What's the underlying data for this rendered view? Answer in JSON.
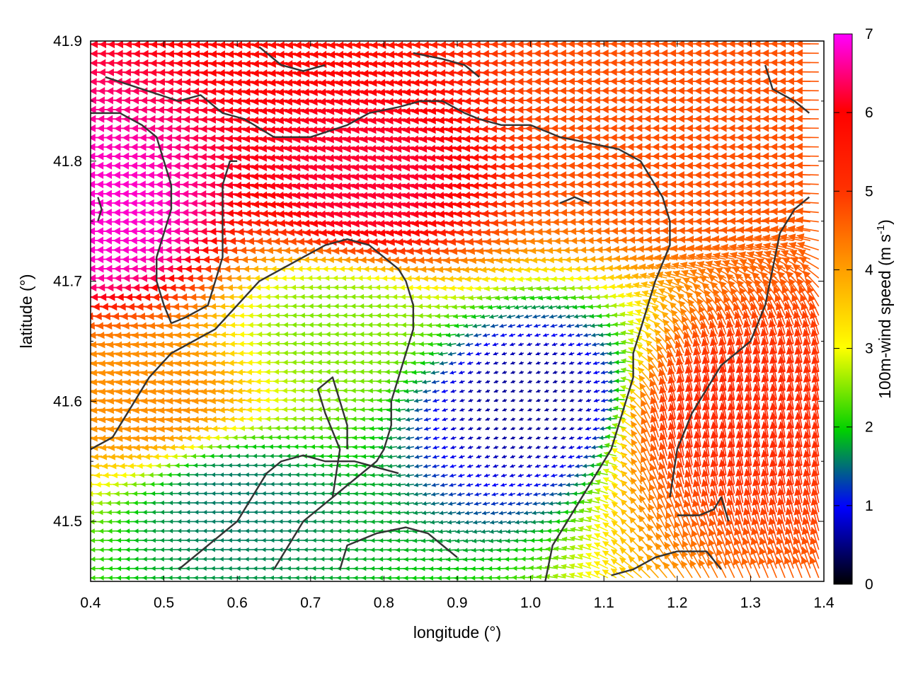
{
  "chart_data": {
    "type": "quiver",
    "xlabel": "longitude (°)",
    "ylabel": "latitude (°)",
    "xlim": [
      0.4,
      1.4
    ],
    "ylim": [
      41.45,
      41.9
    ],
    "xticks": [
      "0.4",
      "0.5",
      "0.6",
      "0.7",
      "0.8",
      "0.9",
      "1.0",
      "1.1",
      "1.2",
      "1.3",
      "1.4"
    ],
    "yticks": [
      "41.5",
      "41.6",
      "41.7",
      "41.8",
      "41.9"
    ],
    "colorbar": {
      "label_main": "100m-wind speed (m s",
      "label_sup": "-1",
      "label_end": ")",
      "range": [
        0,
        7
      ],
      "ticks": [
        "0",
        "1",
        "2",
        "3",
        "4",
        "5",
        "6",
        "7"
      ],
      "colors": [
        "#000000",
        "#0000ff",
        "#00d000",
        "#ffff00",
        "#ffa000",
        "#ff0000",
        "#ff00ff"
      ]
    },
    "grid": false,
    "vector_field": {
      "description_regions": [
        {
          "lon": 0.45,
          "lat": 41.75,
          "speed": 6.8,
          "dir_deg": 180
        },
        {
          "lon": 0.8,
          "lat": 41.78,
          "speed": 6.2,
          "dir_deg": 185
        },
        {
          "lon": 1.2,
          "lat": 41.82,
          "speed": 5.0,
          "dir_deg": 180
        },
        {
          "lon": 0.75,
          "lat": 41.66,
          "speed": 2.5,
          "dir_deg": 180
        },
        {
          "lon": 1.0,
          "lat": 41.6,
          "speed": 0.6,
          "dir_deg": 200
        },
        {
          "lon": 1.28,
          "lat": 41.58,
          "speed": 5.5,
          "dir_deg": 100
        },
        {
          "lon": 0.6,
          "lat": 41.52,
          "speed": 1.6,
          "dir_deg": 180
        },
        {
          "lon": 0.5,
          "lat": 41.6,
          "speed": 4.2,
          "dir_deg": 185
        }
      ]
    },
    "coastlines": [
      [
        [
          0.42,
          41.87
        ],
        [
          0.47,
          41.86
        ],
        [
          0.52,
          41.85
        ],
        [
          0.55,
          41.855
        ],
        [
          0.58,
          41.84
        ],
        [
          0.61,
          41.835
        ],
        [
          0.65,
          41.82
        ],
        [
          0.7,
          41.82
        ],
        [
          0.75,
          41.83
        ],
        [
          0.78,
          41.84
        ],
        [
          0.82,
          41.845
        ],
        [
          0.85,
          41.85
        ],
        [
          0.88,
          41.85
        ],
        [
          0.91,
          41.84
        ],
        [
          0.93,
          41.835
        ],
        [
          0.96,
          41.83
        ],
        [
          1.0,
          41.83
        ],
        [
          1.04,
          41.82
        ],
        [
          1.08,
          41.815
        ],
        [
          1.12,
          41.81
        ],
        [
          1.15,
          41.8
        ],
        [
          1.16,
          41.79
        ],
        [
          1.18,
          41.77
        ],
        [
          1.19,
          41.75
        ],
        [
          1.19,
          41.73
        ],
        [
          1.17,
          41.7
        ],
        [
          1.16,
          41.68
        ],
        [
          1.15,
          41.66
        ],
        [
          1.14,
          41.64
        ],
        [
          1.14,
          41.62
        ],
        [
          1.13,
          41.6
        ],
        [
          1.12,
          41.58
        ],
        [
          1.11,
          41.56
        ],
        [
          1.09,
          41.54
        ],
        [
          1.07,
          41.52
        ],
        [
          1.05,
          41.5
        ],
        [
          1.03,
          41.48
        ],
        [
          1.02,
          41.45
        ]
      ],
      [
        [
          0.4,
          41.84
        ],
        [
          0.44,
          41.84
        ],
        [
          0.47,
          41.83
        ],
        [
          0.49,
          41.82
        ],
        [
          0.5,
          41.8
        ],
        [
          0.51,
          41.78
        ],
        [
          0.51,
          41.76
        ],
        [
          0.5,
          41.74
        ],
        [
          0.49,
          41.72
        ],
        [
          0.49,
          41.7
        ],
        [
          0.5,
          41.68
        ],
        [
          0.51,
          41.665
        ]
      ],
      [
        [
          0.51,
          41.665
        ],
        [
          0.53,
          41.67
        ],
        [
          0.56,
          41.68
        ],
        [
          0.57,
          41.7
        ],
        [
          0.58,
          41.72
        ],
        [
          0.58,
          41.75
        ],
        [
          0.58,
          41.78
        ],
        [
          0.59,
          41.8
        ],
        [
          0.6,
          41.8
        ]
      ],
      [
        [
          0.4,
          41.56
        ],
        [
          0.43,
          41.57
        ],
        [
          0.46,
          41.6
        ],
        [
          0.48,
          41.62
        ],
        [
          0.51,
          41.64
        ],
        [
          0.54,
          41.65
        ],
        [
          0.57,
          41.66
        ],
        [
          0.6,
          41.68
        ],
        [
          0.63,
          41.7
        ],
        [
          0.66,
          41.71
        ],
        [
          0.69,
          41.72
        ],
        [
          0.72,
          41.73
        ],
        [
          0.75,
          41.735
        ],
        [
          0.78,
          41.73
        ],
        [
          0.8,
          41.72
        ],
        [
          0.82,
          41.71
        ],
        [
          0.83,
          41.7
        ],
        [
          0.84,
          41.68
        ],
        [
          0.84,
          41.66
        ],
        [
          0.83,
          41.64
        ],
        [
          0.82,
          41.62
        ],
        [
          0.81,
          41.6
        ],
        [
          0.81,
          41.58
        ],
        [
          0.8,
          41.56
        ],
        [
          0.79,
          41.55
        ],
        [
          0.77,
          41.54
        ],
        [
          0.75,
          41.53
        ],
        [
          0.73,
          41.52
        ],
        [
          0.71,
          41.51
        ],
        [
          0.69,
          41.5
        ],
        [
          0.67,
          41.48
        ],
        [
          0.65,
          41.46
        ]
      ],
      [
        [
          0.73,
          41.52
        ],
        [
          0.74,
          41.56
        ],
        [
          0.72,
          41.59
        ],
        [
          0.71,
          41.61
        ],
        [
          0.73,
          41.62
        ],
        [
          0.74,
          41.6
        ],
        [
          0.75,
          41.58
        ],
        [
          0.75,
          41.56
        ]
      ],
      [
        [
          0.52,
          41.46
        ],
        [
          0.56,
          41.48
        ],
        [
          0.58,
          41.49
        ],
        [
          0.6,
          41.5
        ],
        [
          0.62,
          41.52
        ],
        [
          0.64,
          41.54
        ],
        [
          0.66,
          41.55
        ],
        [
          0.69,
          41.555
        ],
        [
          0.72,
          41.55
        ],
        [
          0.76,
          41.55
        ],
        [
          0.79,
          41.545
        ],
        [
          0.82,
          41.54
        ]
      ],
      [
        [
          0.74,
          41.46
        ],
        [
          0.75,
          41.48
        ],
        [
          0.79,
          41.49
        ],
        [
          0.83,
          41.495
        ],
        [
          0.86,
          41.49
        ],
        [
          0.88,
          41.48
        ],
        [
          0.9,
          41.47
        ]
      ],
      [
        [
          1.11,
          41.455
        ],
        [
          1.14,
          41.46
        ],
        [
          1.17,
          41.47
        ],
        [
          1.2,
          41.475
        ],
        [
          1.24,
          41.475
        ],
        [
          1.26,
          41.46
        ]
      ],
      [
        [
          1.2,
          41.505
        ],
        [
          1.23,
          41.505
        ],
        [
          1.25,
          41.51
        ],
        [
          1.26,
          41.52
        ],
        [
          1.27,
          41.5
        ]
      ],
      [
        [
          1.19,
          41.52
        ],
        [
          1.2,
          41.56
        ],
        [
          1.22,
          41.59
        ],
        [
          1.24,
          41.61
        ],
        [
          1.26,
          41.63
        ],
        [
          1.28,
          41.64
        ],
        [
          1.3,
          41.65
        ],
        [
          1.32,
          41.68
        ],
        [
          1.33,
          41.71
        ],
        [
          1.34,
          41.74
        ],
        [
          1.36,
          41.76
        ],
        [
          1.38,
          41.77
        ]
      ],
      [
        [
          1.32,
          41.88
        ],
        [
          1.33,
          41.86
        ],
        [
          1.36,
          41.85
        ],
        [
          1.38,
          41.84
        ]
      ],
      [
        [
          0.63,
          41.895
        ],
        [
          0.66,
          41.88
        ],
        [
          0.69,
          41.875
        ],
        [
          0.72,
          41.88
        ]
      ],
      [
        [
          0.84,
          41.89
        ],
        [
          0.88,
          41.885
        ],
        [
          0.91,
          41.88
        ],
        [
          0.93,
          41.87
        ]
      ],
      [
        [
          0.41,
          41.77
        ],
        [
          0.415,
          41.76
        ],
        [
          0.41,
          41.75
        ]
      ],
      [
        [
          1.04,
          41.765
        ],
        [
          1.06,
          41.77
        ],
        [
          1.08,
          41.765
        ]
      ]
    ]
  }
}
